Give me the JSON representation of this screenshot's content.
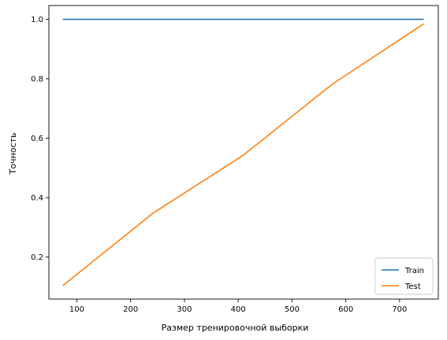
{
  "chart_data": {
    "type": "line",
    "title": "",
    "xlabel": "Размер тренировочной выборки",
    "ylabel": "Точность",
    "xlim": [
      48,
      772
    ],
    "ylim": [
      0.0585,
      1.0465
    ],
    "xticks": [
      100,
      200,
      300,
      400,
      500,
      600,
      700
    ],
    "yticks": [
      0.2,
      0.4,
      0.6,
      0.8,
      1.0
    ],
    "xtick_labels": [
      "100",
      "200",
      "300",
      "400",
      "500",
      "600",
      "700"
    ],
    "ytick_labels": [
      "0.2",
      "0.4",
      "0.6",
      "0.8",
      "1.0"
    ],
    "grid": false,
    "legend_position": "bottom-right",
    "x": [
      74,
      241,
      408,
      575,
      745
    ],
    "series": [
      {
        "name": "Train",
        "color": "#1f77b4",
        "values": [
          1.0,
          1.0,
          1.0,
          1.0,
          1.0
        ]
      },
      {
        "name": "Test",
        "color": "#ff7f0e",
        "values": [
          0.104,
          0.347,
          0.541,
          0.782,
          0.985
        ]
      }
    ]
  }
}
